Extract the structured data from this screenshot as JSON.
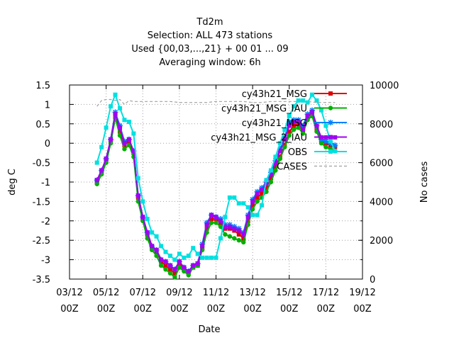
{
  "chart_data": {
    "type": "line",
    "title": [
      "Td2m",
      "Selection: ALL    473 stations",
      "Used {00,03,...,21} + 00 01 ... 09",
      "Averaging window:  6h"
    ],
    "xlabel": "Date",
    "ylabel": "deg C",
    "y2label": "No cases",
    "xlim": [
      3,
      19
    ],
    "ylim": [
      -3.5,
      1.5
    ],
    "y2lim": [
      0,
      10000
    ],
    "x_ticks": [
      {
        "x": 3,
        "top": "03/12",
        "bottom": "00Z"
      },
      {
        "x": 5,
        "top": "05/12",
        "bottom": "00Z"
      },
      {
        "x": 7,
        "top": "07/12",
        "bottom": "00Z"
      },
      {
        "x": 9,
        "top": "09/12",
        "bottom": "00Z"
      },
      {
        "x": 11,
        "top": "11/12",
        "bottom": "00Z"
      },
      {
        "x": 13,
        "top": "13/12",
        "bottom": "00Z"
      },
      {
        "x": 15,
        "top": "15/12",
        "bottom": "00Z"
      },
      {
        "x": 17,
        "top": "17/12",
        "bottom": "00Z"
      },
      {
        "x": 19,
        "top": "19/12",
        "bottom": "00Z"
      }
    ],
    "y_ticks": [
      -3.5,
      -3,
      -2.5,
      -2,
      -1.5,
      -1,
      -0.5,
      0,
      0.5,
      1,
      1.5
    ],
    "y_tick_labels": [
      "-3.5",
      "-3",
      "-2.5",
      "-2",
      "-1.5",
      "-1",
      "-0.5",
      "0",
      "0.5",
      "1",
      "1.5"
    ],
    "y2_ticks": [
      0,
      2000,
      4000,
      6000,
      8000,
      10000
    ],
    "y2_tick_labels": [
      "0",
      "2000",
      "4000",
      "6000",
      "8000",
      "10000"
    ],
    "grid": true,
    "legend_position": "top-right",
    "x": [
      4.5,
      4.75,
      5.0,
      5.25,
      5.5,
      5.75,
      6.0,
      6.25,
      6.5,
      6.75,
      7.0,
      7.25,
      7.5,
      7.75,
      8.0,
      8.25,
      8.5,
      8.75,
      9.0,
      9.25,
      9.5,
      9.75,
      10.0,
      10.25,
      10.5,
      10.75,
      11.0,
      11.25,
      11.5,
      11.75,
      12.0,
      12.25,
      12.5,
      12.75,
      13.0,
      13.25,
      13.5,
      13.75,
      14.0,
      14.25,
      14.5,
      14.75,
      15.0,
      15.25,
      15.5,
      15.75,
      16.0,
      16.25,
      16.5,
      16.75,
      17.0,
      17.25,
      17.5
    ],
    "series": [
      {
        "name": "cy43h21_MSG",
        "color": "#e00000",
        "marker": "square",
        "axis": "y1",
        "values": [
          -1.0,
          -0.75,
          -0.45,
          0.05,
          0.7,
          0.3,
          -0.05,
          0.05,
          -0.25,
          -1.4,
          -1.95,
          -2.35,
          -2.7,
          -2.8,
          -3.05,
          -3.15,
          -3.25,
          -3.35,
          -3.1,
          -3.25,
          -3.35,
          -3.2,
          -3.15,
          -2.7,
          -2.2,
          -1.95,
          -1.95,
          -2.05,
          -2.2,
          -2.2,
          -2.25,
          -2.35,
          -2.45,
          -2.0,
          -1.6,
          -1.4,
          -1.3,
          -1.15,
          -0.9,
          -0.6,
          -0.35,
          -0.05,
          0.3,
          0.45,
          0.5,
          0.3,
          0.65,
          0.8,
          0.35,
          0.05,
          0.0,
          -0.05,
          -0.1
        ]
      },
      {
        "name": "cy43h21_MSG_IAU",
        "color": "#00b000",
        "marker": "circle",
        "axis": "y1",
        "values": [
          -1.05,
          -0.8,
          -0.5,
          0.0,
          0.65,
          0.2,
          -0.15,
          -0.05,
          -0.35,
          -1.5,
          -2.0,
          -2.45,
          -2.75,
          -2.9,
          -3.15,
          -3.25,
          -3.35,
          -3.45,
          -3.2,
          -3.3,
          -3.4,
          -3.2,
          -3.15,
          -2.75,
          -2.3,
          -2.05,
          -2.05,
          -2.15,
          -2.35,
          -2.4,
          -2.45,
          -2.5,
          -2.55,
          -2.1,
          -1.7,
          -1.5,
          -1.4,
          -1.25,
          -1.0,
          -0.7,
          -0.4,
          -0.1,
          0.2,
          0.35,
          0.4,
          0.25,
          0.6,
          0.7,
          0.3,
          0.0,
          -0.1,
          -0.15,
          -0.2
        ]
      },
      {
        "name": "cy43h21_MSG",
        "color": "#0080ff",
        "marker": "star",
        "axis": "y1",
        "values": [
          -0.95,
          -0.7,
          -0.4,
          0.1,
          0.8,
          0.45,
          0.05,
          0.1,
          -0.2,
          -1.35,
          -1.9,
          -2.3,
          -2.65,
          -2.75,
          -3.0,
          -3.05,
          -3.15,
          -3.25,
          -3.05,
          -3.2,
          -3.3,
          -3.15,
          -3.1,
          -2.6,
          -2.05,
          -1.85,
          -1.9,
          -1.95,
          -2.1,
          -2.1,
          -2.15,
          -2.2,
          -2.3,
          -1.85,
          -1.45,
          -1.25,
          -1.15,
          -1.0,
          -0.75,
          -0.45,
          -0.15,
          0.15,
          0.55,
          0.6,
          0.6,
          0.45,
          0.75,
          0.85,
          0.45,
          0.1,
          0.05,
          0.0,
          -0.05
        ]
      },
      {
        "name": "cy43h21_MSG_2_IAU",
        "color": "#a000f0",
        "marker": "square",
        "axis": "y1",
        "values": [
          -0.95,
          -0.7,
          -0.4,
          0.1,
          0.75,
          0.4,
          0.0,
          0.1,
          -0.2,
          -1.35,
          -1.9,
          -2.3,
          -2.65,
          -2.75,
          -3.0,
          -3.05,
          -3.15,
          -3.25,
          -3.05,
          -3.2,
          -3.3,
          -3.15,
          -3.1,
          -2.65,
          -2.1,
          -1.85,
          -1.9,
          -2.0,
          -2.15,
          -2.15,
          -2.2,
          -2.25,
          -2.35,
          -1.9,
          -1.5,
          -1.3,
          -1.2,
          -1.05,
          -0.8,
          -0.5,
          -0.2,
          0.1,
          0.45,
          0.55,
          0.55,
          0.35,
          0.7,
          0.8,
          0.45,
          0.15,
          0.15,
          0.15,
          0.15
        ]
      },
      {
        "name": "OBS",
        "color": "#00e0e0",
        "marker": "square",
        "axis": "y1",
        "values": [
          -0.5,
          -0.1,
          0.4,
          0.95,
          1.25,
          0.9,
          0.6,
          0.55,
          0.25,
          -0.9,
          -1.5,
          -1.95,
          -2.3,
          -2.4,
          -2.65,
          -2.8,
          -2.9,
          -3.0,
          -2.85,
          -2.95,
          -2.9,
          -2.7,
          -2.85,
          -2.95,
          -2.95,
          -2.95,
          -2.95,
          -2.45,
          -1.9,
          -1.4,
          -1.4,
          -1.55,
          -1.55,
          -1.65,
          -1.85,
          -1.85,
          -1.6,
          -0.95,
          -0.7,
          -0.35,
          0.0,
          0.35,
          0.7,
          0.95,
          1.1,
          1.1,
          1.05,
          1.25,
          1.1,
          0.85,
          0.45,
          0.05,
          -0.2
        ]
      },
      {
        "name": "CASES",
        "color": "#a0a0a0",
        "dash": true,
        "axis": "y2",
        "x": [
          4.5,
          4.75,
          5.0,
          5.25,
          5.5,
          5.75,
          6.0,
          6.25,
          6.5,
          7.0,
          7.5,
          8.0,
          8.5,
          9.0,
          9.5,
          10.0,
          10.5,
          11.0,
          11.5,
          12.0,
          12.5,
          13.0,
          13.5,
          14.0,
          14.5,
          15.0,
          15.5,
          16.0,
          16.5,
          17.0,
          17.25,
          17.5
        ],
        "values": [
          8900,
          9200,
          9250,
          9250,
          9200,
          9250,
          9000,
          9200,
          9150,
          9150,
          9150,
          9150,
          9150,
          9100,
          9100,
          9100,
          9100,
          9150,
          9150,
          9150,
          9150,
          9100,
          9100,
          9150,
          9150,
          9150,
          9150,
          9150,
          9100,
          9100,
          9100,
          9100
        ]
      }
    ]
  }
}
